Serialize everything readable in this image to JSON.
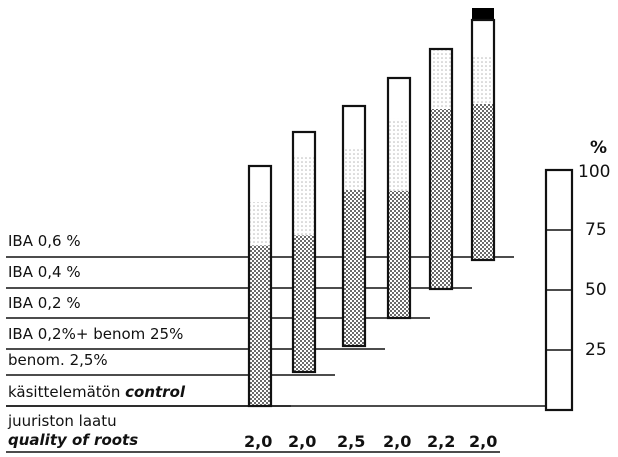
{
  "chart_data": {
    "type": "bar",
    "title": "",
    "xlabel": "",
    "ylabel": "%",
    "ylim": [
      0,
      100
    ],
    "yticks": [
      25,
      50,
      75,
      100
    ],
    "treatments": [
      "IBA 0,6 %",
      "IBA 0,4 %",
      "IBA 0,2 %",
      "IBA 0,2%+ benom 25%",
      "benom. 2,5%",
      "käsittelemätön control"
    ],
    "treatment_label_parts": {
      "control_fi": "käsittelemätön",
      "control_en": "control"
    },
    "categories": [
      "käsittelemätön control",
      "benom. 2,5%",
      "IBA 0,2%+ benom 25%",
      "IBA 0,2 %",
      "IBA 0,4 %",
      "IBA 0,6 %"
    ],
    "series": [
      {
        "values": [
          67,
          57,
          65,
          53,
          75,
          65
        ]
      },
      {
        "values": [
          18,
          33,
          17,
          30,
          25,
          20
        ]
      },
      {
        "values": [
          15,
          10,
          18,
          17,
          0,
          15
        ]
      },
      {
        "values": [
          0,
          0,
          0,
          0,
          0,
          5
        ]
      }
    ],
    "quality_label_fi": "juuriston laatu",
    "quality_label_en": "quality of roots",
    "quality_values": [
      "2,0",
      "2,0",
      "2,5",
      "2,0",
      "2,2",
      "2,0"
    ],
    "colors": {
      "dark": "#3a3a3a",
      "light": "#b8b8b8",
      "stroke": "#111111",
      "top": "#000000"
    }
  }
}
